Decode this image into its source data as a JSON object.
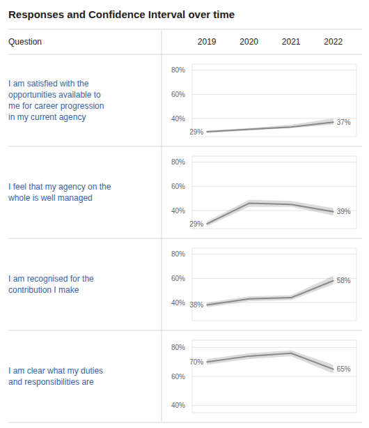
{
  "chart_data": {
    "type": "line",
    "title": "Responses and Confidence Interval over time",
    "annotations": [
      "Question"
    ],
    "x": [
      2019,
      2020,
      2021,
      2022
    ],
    "xlim": [
      2018.65,
      2022.55
    ],
    "xticks": [
      2019,
      2020,
      2021,
      2022
    ],
    "yticks": [
      {
        "value": 40,
        "label": "40%"
      },
      {
        "value": 60,
        "label": "60%"
      },
      {
        "value": 80,
        "label": "80%"
      }
    ],
    "grid": true,
    "series": [
      {
        "name": "I am satisfied with the\nopportunities available to\nme for career progression\nin my current agency",
        "color": "#888888",
        "values": [
          29,
          31,
          33,
          37
        ],
        "value_labels": [
          "29%",
          null,
          null,
          "37%"
        ],
        "ci_lower": [
          28,
          30,
          32,
          35
        ],
        "ci_upper": [
          30,
          32,
          35,
          40
        ],
        "ylim": [
          25,
          85
        ]
      },
      {
        "name": "I feel that my agency on the\nwhole is well managed",
        "color": "#888888",
        "values": [
          29,
          46,
          45,
          39
        ],
        "value_labels": [
          "29%",
          null,
          null,
          "39%"
        ],
        "ci_lower": [
          27,
          43,
          43,
          36
        ],
        "ci_upper": [
          31,
          49,
          48,
          42
        ],
        "ylim": [
          25,
          85
        ]
      },
      {
        "name": "I am recognised for the\ncontribution I make",
        "color": "#888888",
        "values": [
          38,
          43,
          44,
          58
        ],
        "value_labels": [
          "38%",
          null,
          null,
          "58%"
        ],
        "ci_lower": [
          36,
          41,
          42,
          55
        ],
        "ci_upper": [
          40,
          45,
          46,
          62
        ],
        "ylim": [
          25,
          85
        ]
      },
      {
        "name": "I am clear what my duties\nand responsibilities are",
        "color": "#888888",
        "values": [
          70,
          74,
          76,
          65
        ],
        "value_labels": [
          "70%",
          null,
          null,
          "65%"
        ],
        "ci_lower": [
          68,
          72,
          74,
          62
        ],
        "ci_upper": [
          72,
          76,
          78,
          68
        ],
        "ylim": [
          35,
          85
        ]
      }
    ]
  }
}
